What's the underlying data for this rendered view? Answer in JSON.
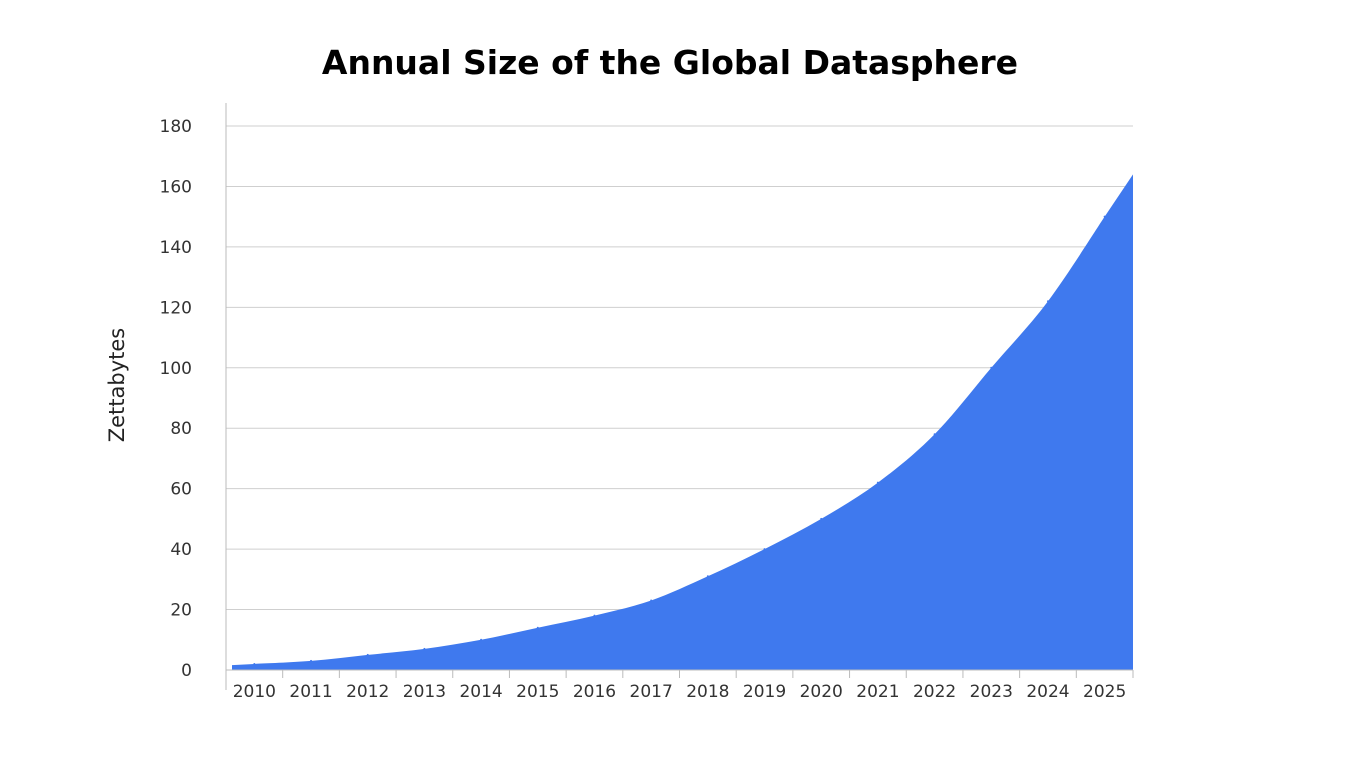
{
  "chart_data": {
    "type": "area",
    "title": "Annual Size of the Global Datasphere",
    "ylabel": "Zettabytes",
    "xlabel": "",
    "categories": [
      "2010",
      "2011",
      "2012",
      "2013",
      "2014",
      "2015",
      "2016",
      "2017",
      "2018",
      "2019",
      "2020",
      "2021",
      "2022",
      "2023",
      "2024",
      "2025"
    ],
    "values": [
      2,
      3,
      5,
      7,
      10,
      14,
      18,
      23,
      31,
      40,
      50,
      62,
      78,
      100,
      122,
      150
    ],
    "ylim": [
      0,
      180
    ],
    "yticks": [
      0,
      20,
      40,
      60,
      80,
      100,
      120,
      140,
      160,
      180
    ],
    "grid": true,
    "legend": "none",
    "colors": {
      "area": "#3f79ee",
      "grid": "#cfcfcf",
      "axis": "#bbbbbb"
    }
  }
}
